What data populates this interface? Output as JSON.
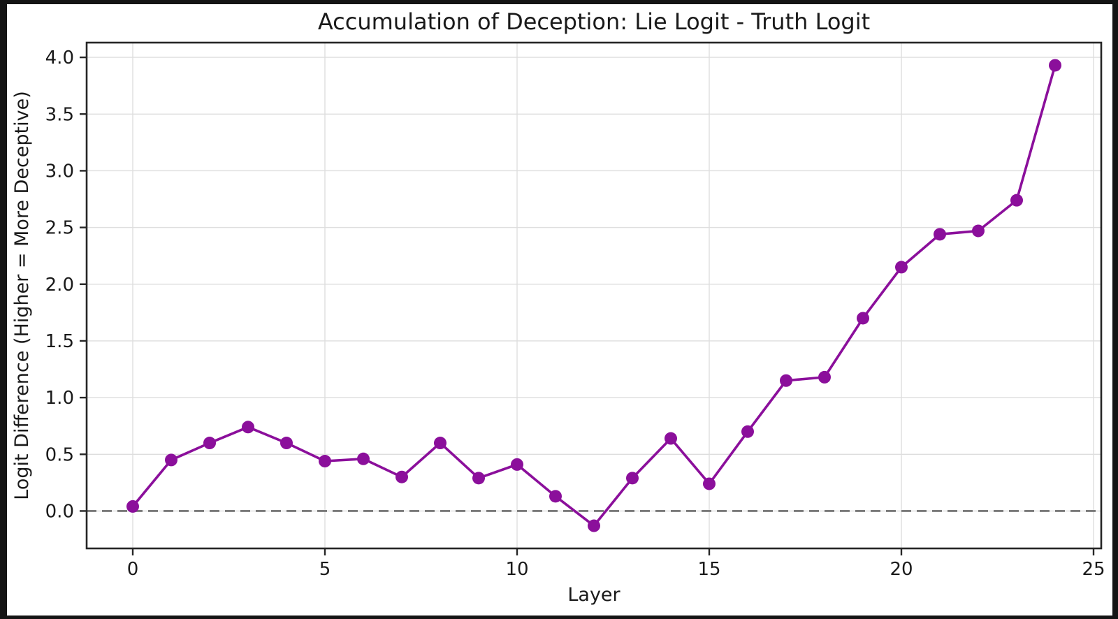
{
  "window": {
    "outer_background": "#141414",
    "figure_background": "#ffffff"
  },
  "chart_data": {
    "type": "line",
    "title": "Accumulation of Deception: Lie Logit - Truth Logit",
    "xlabel": "Layer",
    "ylabel": "Logit Difference (Higher = More Deceptive)",
    "x": [
      0,
      1,
      2,
      3,
      4,
      5,
      6,
      7,
      8,
      9,
      10,
      11,
      12,
      13,
      14,
      15,
      16,
      17,
      18,
      19,
      20,
      21,
      22,
      23,
      24
    ],
    "series": [
      {
        "name": "Lie Logit - Truth Logit",
        "values": [
          0.04,
          0.45,
          0.6,
          0.74,
          0.6,
          0.44,
          0.46,
          0.3,
          0.6,
          0.29,
          0.41,
          0.13,
          -0.13,
          0.29,
          0.64,
          0.24,
          0.7,
          1.15,
          1.18,
          1.7,
          2.15,
          2.44,
          2.47,
          2.74,
          3.93
        ]
      }
    ],
    "xlim": [
      -1.2,
      25.2
    ],
    "ylim": [
      -0.33,
      4.13
    ],
    "xticks": {
      "values": [
        0,
        5,
        10,
        15,
        20,
        25
      ],
      "labels": [
        "0",
        "5",
        "10",
        "15",
        "20",
        "25"
      ]
    },
    "yticks": {
      "values": [
        0.0,
        0.5,
        1.0,
        1.5,
        2.0,
        2.5,
        3.0,
        3.5,
        4.0
      ],
      "labels": [
        "0.0",
        "0.5",
        "1.0",
        "1.5",
        "2.0",
        "2.5",
        "3.0",
        "3.5",
        "4.0"
      ]
    },
    "grid": true,
    "legend": "none",
    "zero_line": {
      "y": 0.0,
      "style": "dashed",
      "color": "#7a7a7a"
    },
    "colors": {
      "line": "#8b0f9b",
      "marker": "#8b0f9b",
      "grid": "#dedede",
      "spine": "#262626",
      "text": "#1a1a1a"
    },
    "marker": "circle"
  }
}
